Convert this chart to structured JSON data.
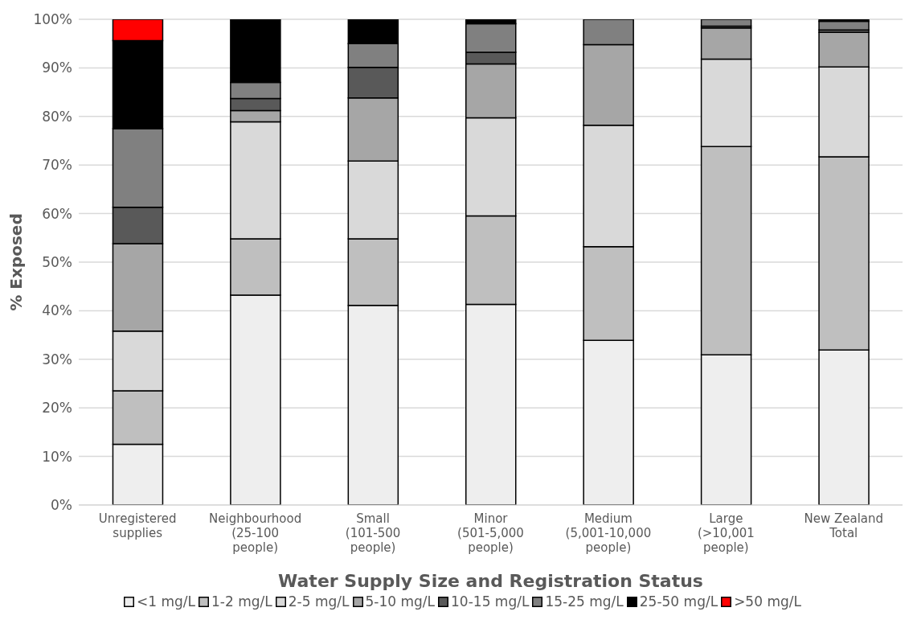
{
  "chart_data": {
    "type": "bar",
    "stacked": true,
    "xlabel": "Water Supply Size and Registration Status",
    "ylabel": "% Exposed",
    "categories": [
      "Unregistered supplies",
      "Neighbourhood (25-100 people)",
      "Small (101-500 people)",
      "Minor (501-5,000 people)",
      "Medium (5,001-10,000 people)",
      "Large (>10,001 people)",
      "New Zealand Total"
    ],
    "series": [
      {
        "name": "<1 mg/L",
        "color": "#eeeeee",
        "values": [
          12.5,
          43.2,
          41.1,
          41.3,
          33.9,
          30.9,
          31.9
        ]
      },
      {
        "name": "1-2 mg/L",
        "color": "#bfbfbf",
        "values": [
          11.0,
          11.6,
          13.7,
          18.2,
          19.3,
          42.9,
          39.8
        ]
      },
      {
        "name": "2-5 mg/L",
        "color": "#d9d9d9",
        "values": [
          12.3,
          24.1,
          16.0,
          20.2,
          25.0,
          18.0,
          18.5
        ]
      },
      {
        "name": "5-10 mg/L",
        "color": "#a6a6a6",
        "values": [
          18.0,
          2.3,
          13.0,
          11.1,
          16.6,
          6.4,
          7.1
        ]
      },
      {
        "name": "10-15 mg/L",
        "color": "#595959",
        "values": [
          7.5,
          2.5,
          6.3,
          2.4,
          0,
          0.4,
          0.5
        ]
      },
      {
        "name": "15-25 mg/L",
        "color": "#808080",
        "values": [
          16.2,
          3.3,
          4.9,
          5.9,
          5.2,
          1.4,
          1.8
        ]
      },
      {
        "name": "25-50 mg/L",
        "color": "#000000",
        "values": [
          18.1,
          13.0,
          5.0,
          0.9,
          0,
          0,
          0.4
        ]
      },
      {
        "name": ">50 mg/L",
        "color": "#ff0000",
        "values": [
          4.4,
          0,
          0,
          0,
          0,
          0,
          0
        ]
      }
    ],
    "ylim": [
      0,
      100
    ],
    "yticks": [
      {
        "value": 0,
        "label": "0%"
      },
      {
        "value": 10,
        "label": "10%"
      },
      {
        "value": 20,
        "label": "20%"
      },
      {
        "value": 30,
        "label": "30%"
      },
      {
        "value": 40,
        "label": "40%"
      },
      {
        "value": 50,
        "label": "50%"
      },
      {
        "value": 60,
        "label": "60%"
      },
      {
        "value": 70,
        "label": "70%"
      },
      {
        "value": 80,
        "label": "80%"
      },
      {
        "value": 90,
        "label": "90%"
      },
      {
        "value": 100,
        "label": "100%"
      }
    ],
    "grid": "y",
    "legend": "bottom"
  }
}
